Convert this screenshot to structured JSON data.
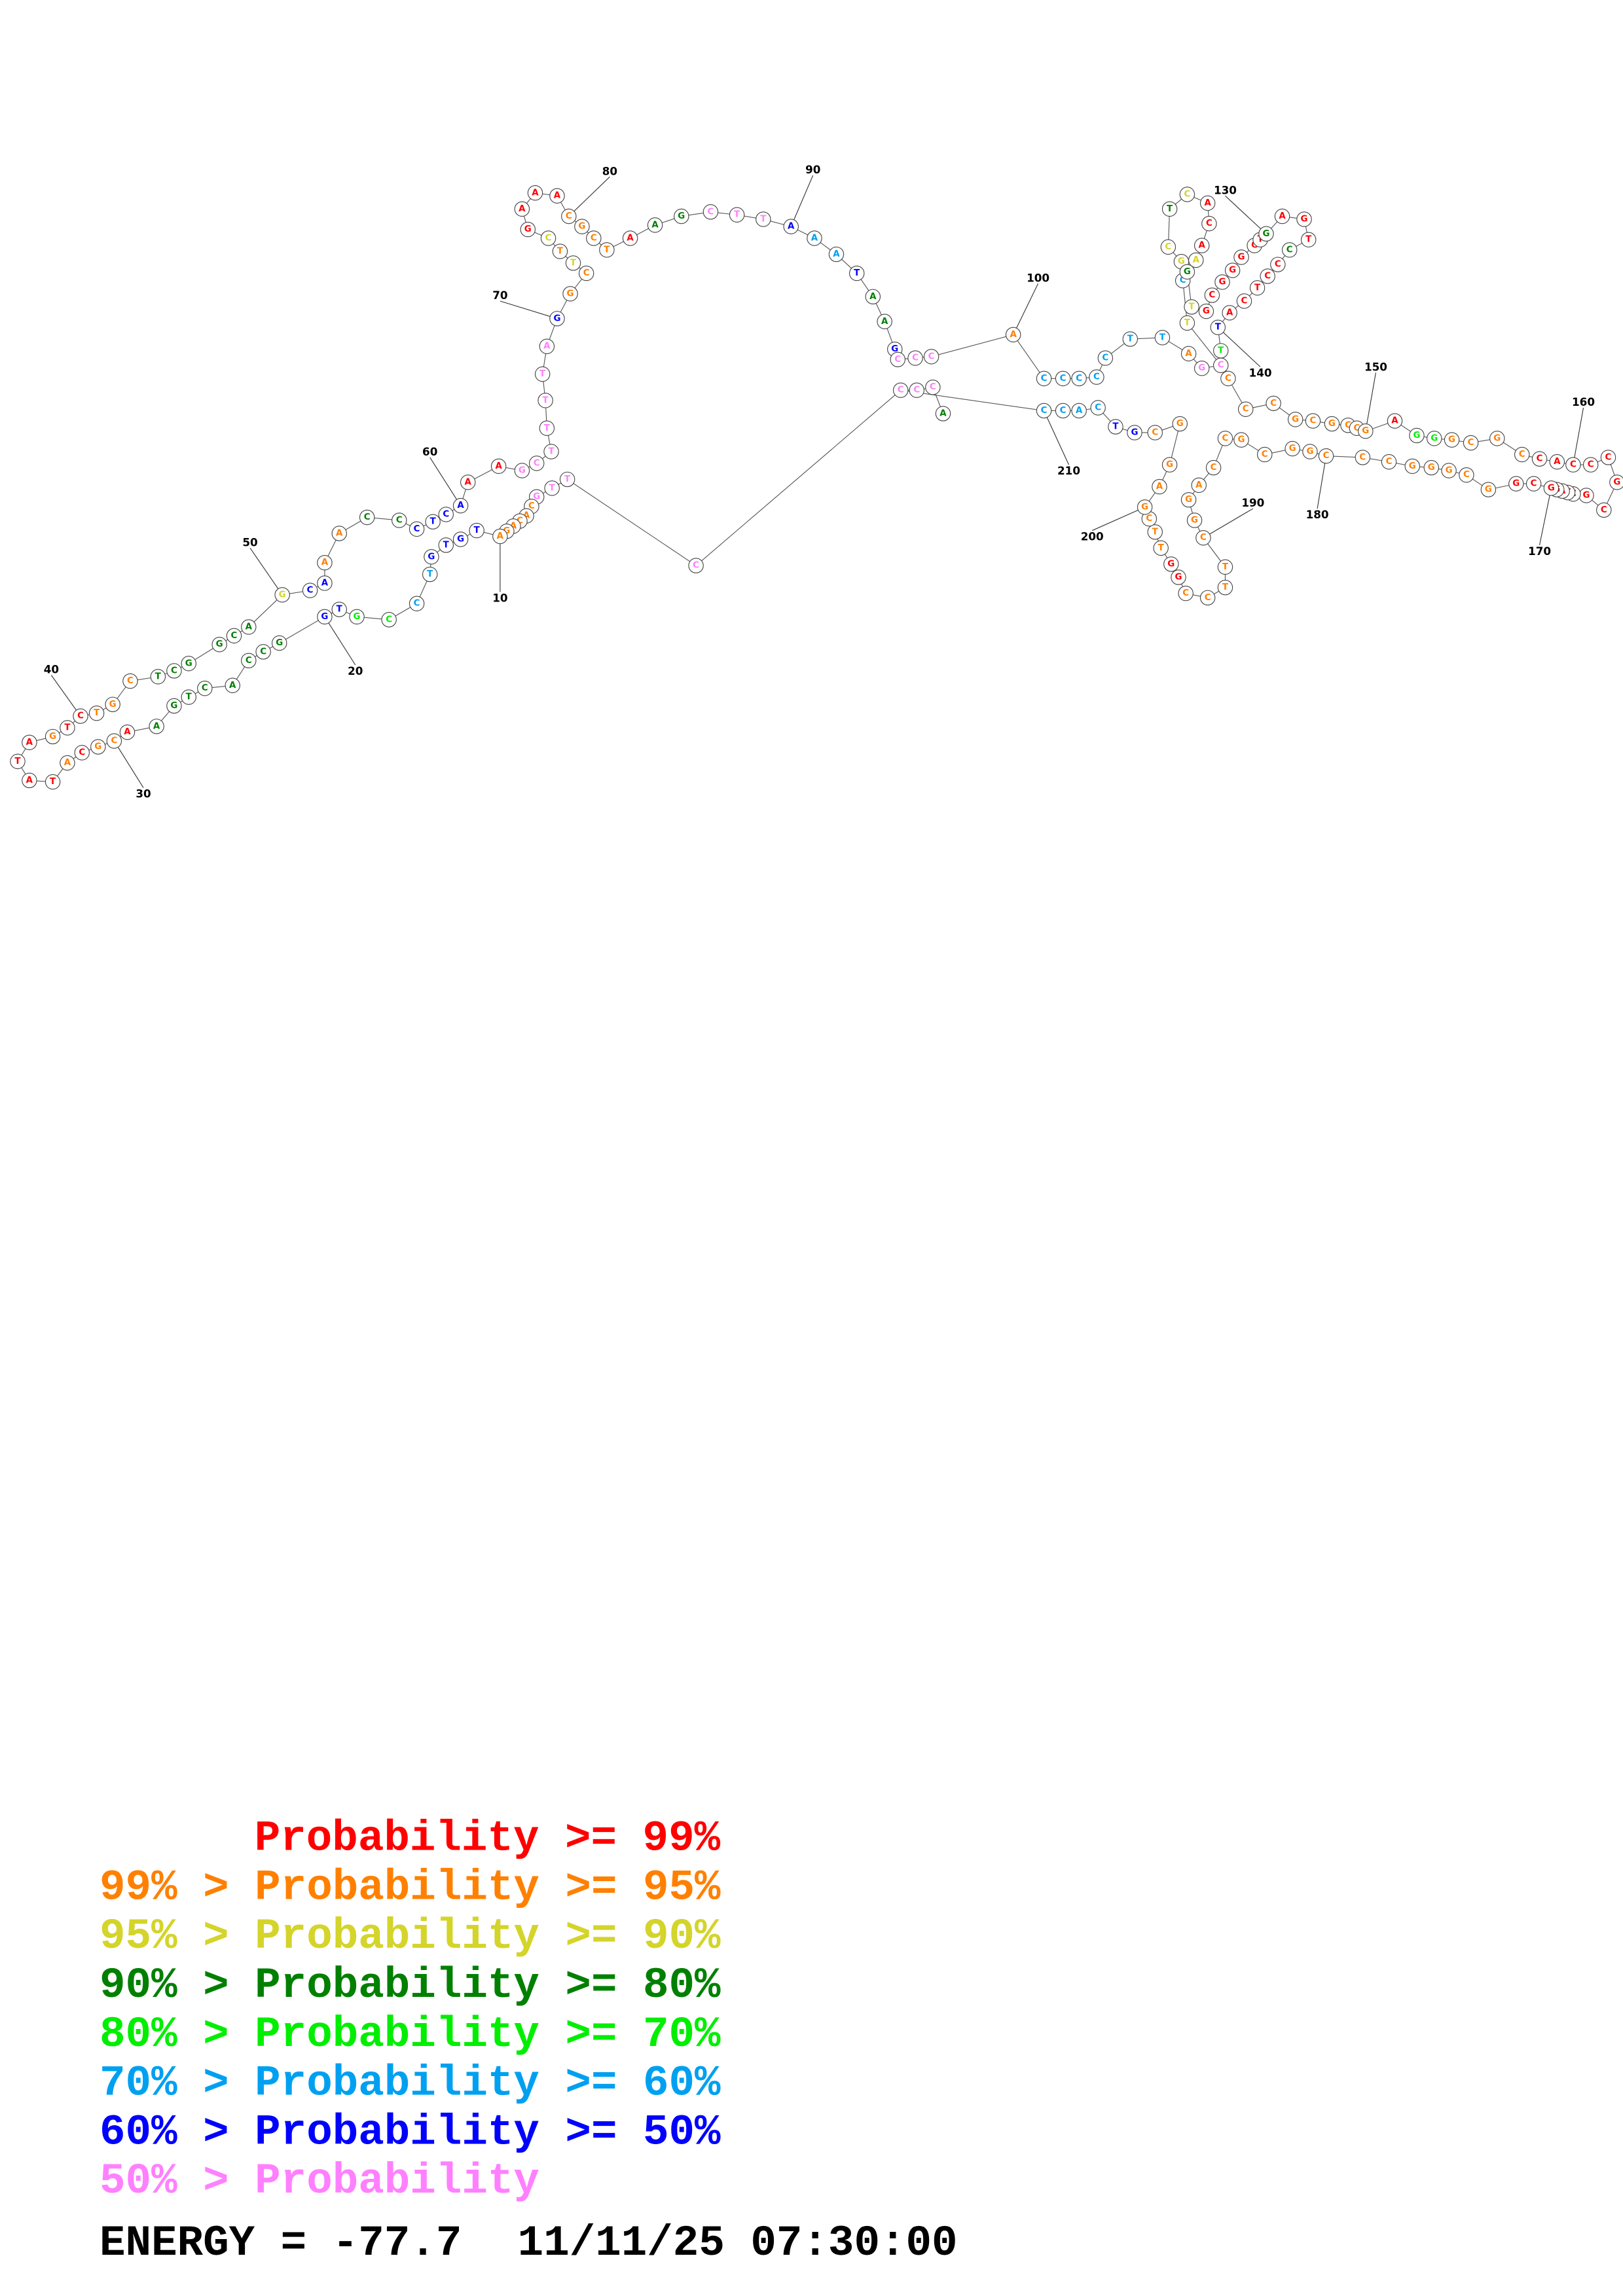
{
  "structure": {
    "sequence": [
      "C",
      "T",
      "T",
      "G",
      "C",
      "A",
      "C",
      "A",
      "G",
      "A",
      "T",
      "G",
      "T",
      "G",
      "T",
      "C",
      "C",
      "G",
      "T",
      "G",
      "G",
      "C",
      "C",
      "A",
      "C",
      "T",
      "G",
      "A",
      "A",
      "C",
      "G",
      "C",
      "A",
      "T",
      "A",
      "T",
      "A",
      "G",
      "T",
      "C",
      "T",
      "G",
      "C",
      "T",
      "C",
      "G",
      "G",
      "C",
      "A",
      "G",
      "C",
      "A",
      "A",
      "A",
      "C",
      "C",
      "C",
      "T",
      "C",
      "A",
      "A",
      "A",
      "G",
      "C",
      "T",
      "T",
      "T",
      "T",
      "A",
      "G",
      "G",
      "C",
      "T",
      "T",
      "C",
      "G",
      "A",
      "A",
      "A",
      "C",
      "G",
      "C",
      "T",
      "A",
      "A",
      "G",
      "C",
      "T",
      "T",
      "A",
      "A",
      "A",
      "T",
      "A",
      "A",
      "G",
      "C",
      "C",
      "C",
      "A",
      "C",
      "C",
      "C",
      "C",
      "C",
      "T",
      "T",
      "A",
      "G",
      "C",
      "T",
      "C",
      "G",
      "C",
      "T",
      "C",
      "A",
      "C",
      "A",
      "A",
      "G",
      "T",
      "G",
      "C",
      "G",
      "G",
      "G",
      "C",
      "T",
      "G",
      "A",
      "G",
      "T",
      "C",
      "C",
      "C",
      "T",
      "C",
      "A",
      "T",
      "T",
      "C",
      "C",
      "C",
      "G",
      "C",
      "G",
      "C",
      "C",
      "G",
      "A",
      "G",
      "G",
      "G",
      "C",
      "G",
      "C",
      "C",
      "A",
      "C",
      "C",
      "C",
      "G",
      "C",
      "G",
      "C",
      "T",
      "A",
      "G",
      "G",
      "C",
      "G",
      "G",
      "C",
      "G",
      "G",
      "G",
      "C",
      "C",
      "C",
      "G",
      "G",
      "C",
      "G",
      "C",
      "C",
      "A",
      "G",
      "G",
      "C",
      "T",
      "T",
      "C",
      "C",
      "G",
      "G",
      "T",
      "T",
      "C",
      "G",
      "A",
      "G",
      "G",
      "C",
      "G",
      "T",
      "C",
      "A",
      "C",
      "C",
      "C",
      "C",
      "C",
      "A"
    ],
    "probability_class": [
      7,
      7,
      7,
      7,
      1,
      1,
      1,
      1,
      1,
      1,
      6,
      6,
      6,
      6,
      5,
      5,
      4,
      4,
      6,
      6,
      3,
      3,
      3,
      3,
      3,
      3,
      3,
      3,
      0,
      1,
      1,
      0,
      1,
      0,
      0,
      0,
      0,
      1,
      0,
      0,
      1,
      1,
      1,
      3,
      3,
      3,
      3,
      3,
      3,
      2,
      6,
      6,
      1,
      1,
      3,
      3,
      6,
      6,
      6,
      6,
      0,
      0,
      7,
      7,
      7,
      7,
      7,
      7,
      7,
      6,
      1,
      1,
      2,
      1,
      2,
      0,
      0,
      0,
      0,
      1,
      1,
      1,
      1,
      0,
      3,
      3,
      7,
      7,
      7,
      6,
      5,
      5,
      6,
      3,
      3,
      6,
      7,
      7,
      7,
      1,
      5,
      5,
      5,
      5,
      5,
      5,
      5,
      1,
      7,
      7,
      2,
      5,
      2,
      2,
      3,
      2,
      0,
      0,
      0,
      2,
      3,
      2,
      0,
      0,
      0,
      0,
      0,
      0,
      0,
      3,
      0,
      0,
      0,
      3,
      0,
      0,
      0,
      0,
      0,
      6,
      4,
      1,
      1,
      1,
      1,
      1,
      1,
      1,
      1,
      1,
      0,
      4,
      4,
      1,
      1,
      1,
      1,
      0,
      0,
      0,
      0,
      0,
      0,
      0,
      0,
      0,
      0,
      0,
      0,
      0,
      0,
      0,
      1,
      1,
      1,
      1,
      1,
      1,
      1,
      1,
      1,
      1,
      1,
      1,
      1,
      1,
      1,
      1,
      1,
      1,
      1,
      1,
      1,
      1,
      0,
      0,
      1,
      1,
      1,
      1,
      1,
      1,
      1,
      1,
      6,
      6,
      5,
      5,
      5,
      5,
      7,
      7,
      7,
      3
    ],
    "position_labels": [
      10,
      20,
      30,
      40,
      50,
      60,
      70,
      80,
      90,
      100,
      130,
      140,
      150,
      160,
      170,
      180,
      190,
      200,
      210
    ]
  },
  "legend": [
    {
      "label": "Probability >= 99%",
      "color": "#ff0000"
    },
    {
      "label": "99% > Probability >= 95%",
      "color": "#ff8000"
    },
    {
      "label": "95% > Probability >= 90%",
      "color": "#d4d42a"
    },
    {
      "label": "90% > Probability >= 80%",
      "color": "#008000"
    },
    {
      "label": "80% > Probability >= 70%",
      "color": "#00ee00"
    },
    {
      "label": "70% > Probability >= 60%",
      "color": "#00a0f0"
    },
    {
      "label": "60% > Probability >= 50%",
      "color": "#0000ff"
    },
    {
      "label": "50% > Probability",
      "color": "#ff80ff"
    }
  ],
  "footer": {
    "energy": "ENERGY = -77.7",
    "timestamp": "11/11/25 07:30:00"
  }
}
